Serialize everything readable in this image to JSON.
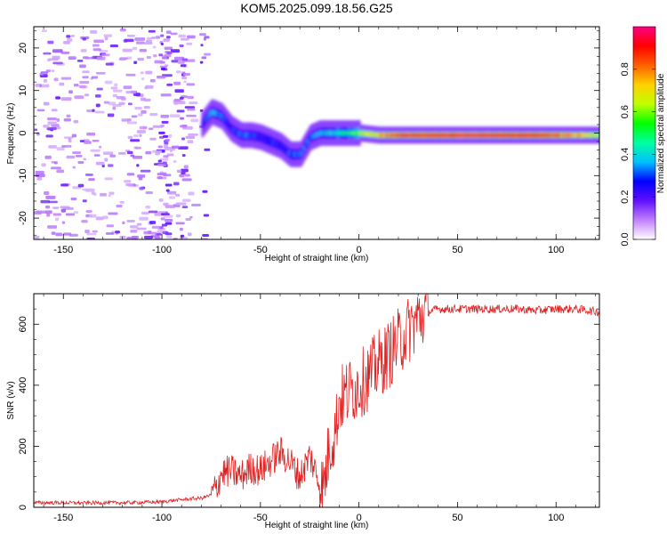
{
  "title": "KOM5.2025.099.18.56.G25",
  "chart_data": [
    {
      "type": "heatmap",
      "xlabel": "Height of straight line (km)",
      "ylabel": "Frequency (Hz)",
      "xlim": [
        -165,
        122
      ],
      "ylim": [
        -25,
        25
      ],
      "xticks": [
        -150,
        -100,
        -50,
        0,
        50,
        100
      ],
      "yticks": [
        -20,
        -10,
        0,
        10,
        20
      ],
      "colorbar": {
        "label": "Normalized spectral amplitude",
        "range": [
          0,
          1
        ],
        "ticks": [
          0.0,
          0.2,
          0.4,
          0.6,
          0.8
        ],
        "tick_labels": [
          "0.0",
          "0.2",
          "0.4",
          "0.6",
          "0.8"
        ],
        "colormap": [
          "#ffffff",
          "#c080ff",
          "#6010ff",
          "#0000ff",
          "#00c0ff",
          "#00ffa0",
          "#00ff00",
          "#c0ff00",
          "#ffd000",
          "#ff6000",
          "#ff0000",
          "#ff0080"
        ]
      },
      "trace": {
        "x": [
          -80,
          -75,
          -70,
          -65,
          -60,
          -55,
          -50,
          -45,
          -40,
          -35,
          -30,
          -25,
          -20,
          -15,
          -10,
          -5,
          0,
          10,
          20,
          30,
          50,
          70,
          90,
          110,
          122
        ],
        "freq": [
          2,
          5,
          4,
          1,
          -0.5,
          -0.5,
          -1,
          -2,
          -3,
          -5,
          -5,
          -1,
          0,
          0,
          0,
          0,
          0,
          -0.5,
          -0.5,
          -0.5,
          -0.5,
          -0.5,
          -0.5,
          -0.5,
          -0.5
        ],
        "amplitude": [
          0.2,
          0.35,
          0.3,
          0.25,
          0.3,
          0.3,
          0.25,
          0.3,
          0.25,
          0.3,
          0.3,
          0.3,
          0.35,
          0.4,
          0.45,
          0.5,
          0.6,
          0.75,
          0.85,
          0.9,
          0.95,
          0.95,
          0.9,
          0.75,
          0.6
        ]
      },
      "noise_extent": [
        -165,
        -85
      ]
    },
    {
      "type": "line",
      "xlabel": "Height of straight line (km)",
      "ylabel": "SNR (v/v)",
      "xlim": [
        -165,
        122
      ],
      "ylim": [
        0,
        700
      ],
      "xticks": [
        -150,
        -100,
        -50,
        0,
        50,
        100
      ],
      "yticks": [
        0,
        200,
        400,
        600
      ],
      "series": [
        {
          "color": "#e02020",
          "x": [
            -165,
            -150,
            -140,
            -130,
            -120,
            -110,
            -100,
            -95,
            -90,
            -85,
            -80,
            -75,
            -72,
            -70,
            -65,
            -60,
            -55,
            -50,
            -45,
            -40,
            -35,
            -30,
            -25,
            -20,
            -18,
            -15,
            -12,
            -10,
            -5,
            0,
            5,
            10,
            15,
            20,
            25,
            30,
            35,
            40,
            50,
            60,
            70,
            80,
            90,
            100,
            110,
            122
          ],
          "y": [
            15,
            15,
            14,
            15,
            15,
            16,
            18,
            22,
            25,
            28,
            30,
            40,
            70,
            110,
            120,
            100,
            130,
            120,
            150,
            180,
            150,
            100,
            170,
            80,
            60,
            200,
            250,
            350,
            380,
            400,
            430,
            470,
            500,
            540,
            580,
            620,
            640,
            650,
            650,
            650,
            650,
            650,
            645,
            650,
            650,
            640
          ]
        }
      ]
    }
  ]
}
